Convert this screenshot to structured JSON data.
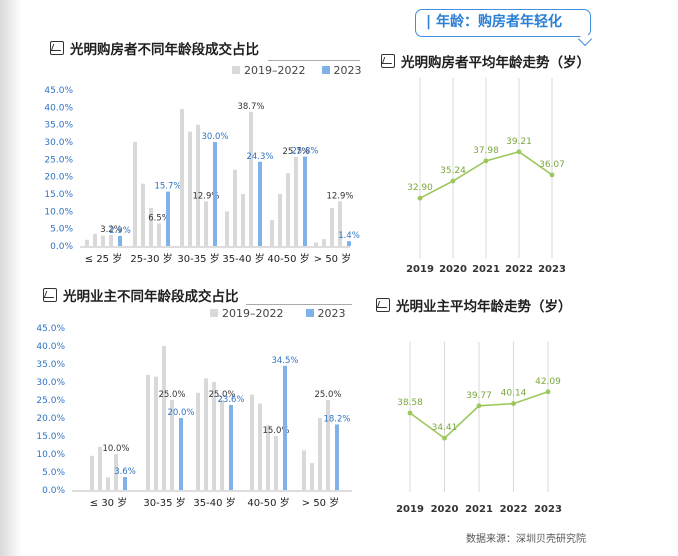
{
  "banner": {
    "text": "| 年龄：购房者年轻化"
  },
  "source": "数据来源：深圳贝壳研究院",
  "colors": {
    "old": "#d9d9d9",
    "new": "#7fb2e8",
    "line": "#9cc75b",
    "grid": "#d8d8d8",
    "label_new": "#2f74c4"
  },
  "chart_data": [
    {
      "type": "bar",
      "title": "光明购房者不同年龄段成交占比",
      "legend": [
        "2019–2022",
        "2023"
      ],
      "yticks": [
        "0.0%",
        "5.0%",
        "10.0%",
        "15.0%",
        "20.0%",
        "25.0%",
        "30.0%",
        "35.0%",
        "40.0%",
        "45.0%"
      ],
      "ylim": [
        0,
        45
      ],
      "categories": [
        "≤ 25 岁",
        "25-30 岁",
        "30-35 岁",
        "35-40 岁",
        "40-50 岁",
        "> 50 岁"
      ],
      "series": [
        {
          "name": "2019–2022",
          "values": [
            [
              1.8,
              3.5,
              3.0,
              3.2
            ],
            [
              30.0,
              18.0,
              11.0,
              6.5
            ],
            [
              39.5,
              33.0,
              35.0,
              12.9
            ],
            [
              10.0,
              22.0,
              15.0,
              38.7
            ],
            [
              7.5,
              15.0,
              21.0,
              25.7
            ],
            [
              1.0,
              2.0,
              11.0,
              12.9
            ]
          ]
        },
        {
          "name": "2023",
          "values": [
            2.9,
            15.7,
            30.0,
            24.3,
            25.8,
            1.4
          ]
        }
      ],
      "labels_old": [
        "3.2%",
        "6.5%",
        "12.9%",
        "38.7%",
        "25.7%",
        "12.9%"
      ],
      "labels_new": [
        "2.9%",
        "15.7%",
        "30.0%",
        "24.3%",
        "25.8%",
        "1.4%"
      ]
    },
    {
      "type": "line",
      "title": "光明购房者平均年龄走势（岁）",
      "x": [
        "2019",
        "2020",
        "2021",
        "2022",
        "2023"
      ],
      "values": [
        32.9,
        35.24,
        37.98,
        39.21,
        36.07
      ],
      "labels": [
        "32.90",
        "35.24",
        "37.98",
        "39.21",
        "36.07"
      ]
    },
    {
      "type": "bar",
      "title": "光明业主不同年龄段成交占比",
      "legend": [
        "2019–2022",
        "2023"
      ],
      "yticks": [
        "0.0%",
        "5.0%",
        "10.0%",
        "15.0%",
        "20.0%",
        "25.0%",
        "30.0%",
        "35.0%",
        "40.0%",
        "45.0%"
      ],
      "ylim": [
        0,
        45
      ],
      "categories": [
        "≤ 30 岁",
        "30-35 岁",
        "35-40 岁",
        "40-50 岁",
        "> 50 岁"
      ],
      "series": [
        {
          "name": "2019–2022",
          "values": [
            [
              9.5,
              12.0,
              3.5,
              10.0
            ],
            [
              32.0,
              31.5,
              40.0,
              25.0
            ],
            [
              27.0,
              31.0,
              30.0,
              25.0
            ],
            [
              26.5,
              24.0,
              18.0,
              15.0
            ],
            [
              11.0,
              7.5,
              20.0,
              25.0
            ]
          ]
        },
        {
          "name": "2023",
          "values": [
            3.6,
            20.0,
            23.6,
            34.5,
            18.2
          ]
        }
      ],
      "labels_old": [
        "10.0%",
        "25.0%",
        "25.0%",
        "15.0%",
        "25.0%"
      ],
      "labels_new": [
        "3.6%",
        "20.0%",
        "23.6%",
        "34.5%",
        "18.2%"
      ]
    },
    {
      "type": "line",
      "title": "光明业主平均年龄走势（岁）",
      "x": [
        "2019",
        "2020",
        "2021",
        "2022",
        "2023"
      ],
      "values": [
        38.58,
        34.41,
        39.77,
        40.14,
        42.09
      ],
      "labels": [
        "38.58",
        "34.41",
        "39.77",
        "40.14",
        "42.09"
      ]
    }
  ]
}
